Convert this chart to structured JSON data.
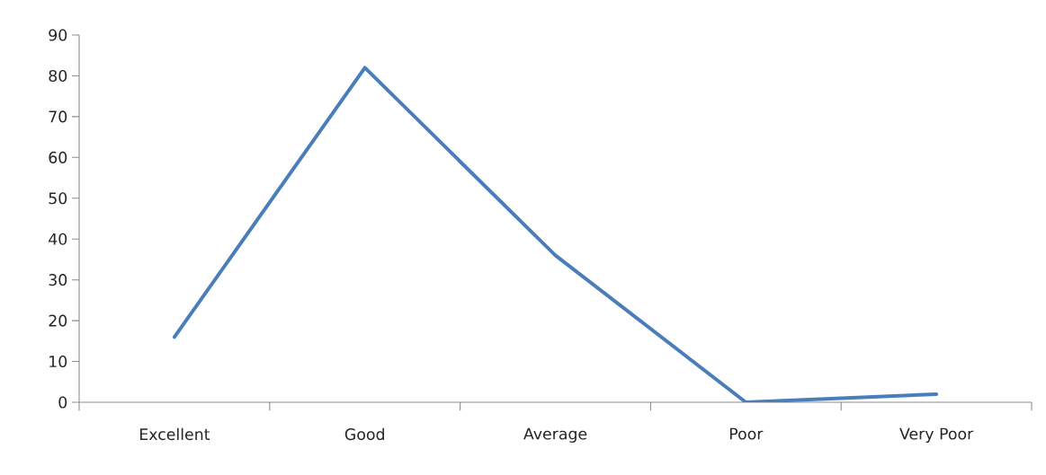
{
  "chart_data": {
    "type": "line",
    "categories": [
      "Excellent",
      "Good",
      "Average",
      "Poor",
      "Very Poor"
    ],
    "series": [
      {
        "color": "#4a7ebb",
        "values": [
          16,
          82,
          36,
          0,
          2
        ]
      }
    ],
    "ylim": [
      0,
      90
    ],
    "yticks": [
      0,
      10,
      20,
      30,
      40,
      50,
      60,
      70,
      80,
      90
    ],
    "grid": false,
    "marker": "none",
    "line_style": "solid"
  }
}
